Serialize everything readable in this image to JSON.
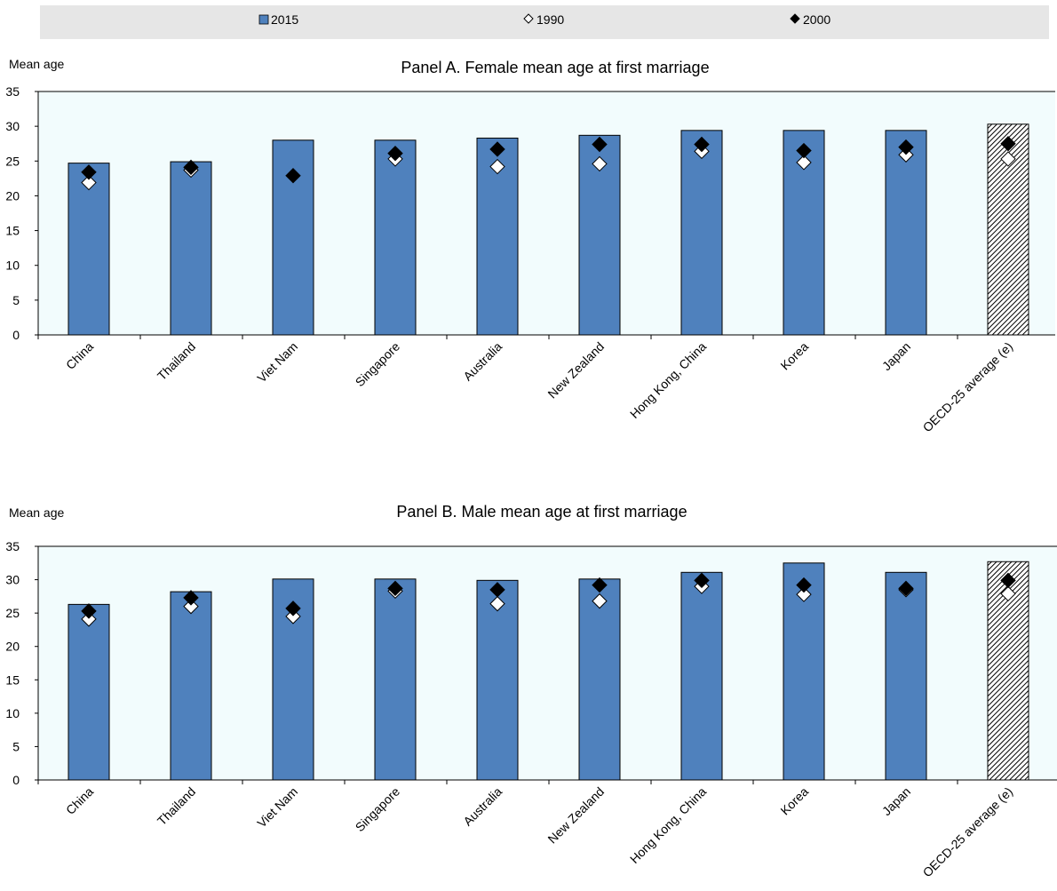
{
  "legend": {
    "items": [
      {
        "label": "2015",
        "marker": "bar",
        "color": "#4f81bd"
      },
      {
        "label": "1990",
        "marker": "hollow-diamond",
        "color": "#ffffff"
      },
      {
        "label": "2000",
        "marker": "filled-diamond",
        "color": "#000000"
      }
    ]
  },
  "colors": {
    "bar_fill": "#4f81bd",
    "bar_stroke": "#000000",
    "plot_background": "#f2fcfd",
    "highlight_pattern": "diagonal-hatch"
  },
  "chart_data": [
    {
      "type": "bar",
      "title": "Panel A. Female mean age at first marriage",
      "ylabel": "Mean age",
      "xlabel": "",
      "ylim": [
        0,
        35
      ],
      "yticks": [
        0,
        5,
        10,
        15,
        20,
        25,
        30,
        35
      ],
      "grid": false,
      "categories": [
        "China",
        "Thailand",
        "Viet Nam",
        "Singapore",
        "Australia",
        "New Zealand",
        "Hong Kong, China",
        "Korea",
        "Japan",
        "OECD-25 average (e)"
      ],
      "highlight_category": "OECD-25 average (e)",
      "series": [
        {
          "name": "2015",
          "kind": "bar",
          "values": [
            24.7,
            24.9,
            28.0,
            28.0,
            28.3,
            28.7,
            29.4,
            29.4,
            29.4,
            30.3
          ]
        },
        {
          "name": "1990",
          "kind": "hollow-diamond",
          "values": [
            21.9,
            23.7,
            null,
            25.3,
            24.2,
            24.6,
            26.4,
            24.8,
            25.9,
            25.3
          ]
        },
        {
          "name": "2000",
          "kind": "filled-diamond",
          "values": [
            23.4,
            24.1,
            22.9,
            26.1,
            26.7,
            27.4,
            27.4,
            26.5,
            27.0,
            27.5
          ]
        }
      ]
    },
    {
      "type": "bar",
      "title": "Panel B. Male mean age at first marriage",
      "ylabel": "Mean age",
      "xlabel": "",
      "ylim": [
        0,
        35
      ],
      "yticks": [
        0,
        5,
        10,
        15,
        20,
        25,
        30,
        35
      ],
      "grid": false,
      "categories": [
        "China",
        "Thailand",
        "Viet Nam",
        "Singapore",
        "Australia",
        "New Zealand",
        "Hong Kong, China",
        "Korea",
        "Japan",
        "OECD-25 average (e)"
      ],
      "highlight_category": "OECD-25 average (e)",
      "series": [
        {
          "name": "2015",
          "kind": "bar",
          "values": [
            26.3,
            28.2,
            30.1,
            30.1,
            29.9,
            30.1,
            31.1,
            32.5,
            31.1,
            32.7
          ]
        },
        {
          "name": "1990",
          "kind": "hollow-diamond",
          "values": [
            24.1,
            26.0,
            24.5,
            28.3,
            26.4,
            26.8,
            29.0,
            27.8,
            28.5,
            27.9
          ]
        },
        {
          "name": "2000",
          "kind": "filled-diamond",
          "values": [
            25.3,
            27.3,
            25.7,
            28.7,
            28.5,
            29.2,
            29.9,
            29.2,
            28.7,
            29.9
          ]
        }
      ]
    }
  ]
}
